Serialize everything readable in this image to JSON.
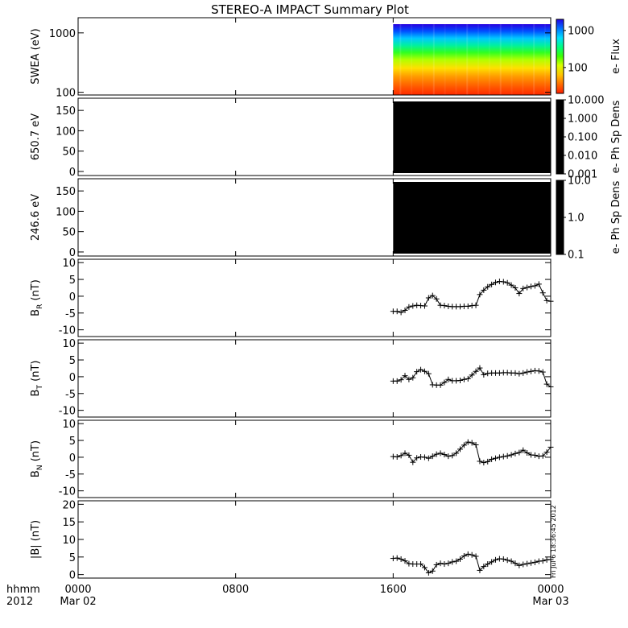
{
  "chart_data": {
    "type": "line",
    "title": "STEREO-A IMPACT Summary Plot",
    "x_axis": {
      "range_hours": [
        0,
        24
      ],
      "ticks": [
        {
          "hour": 0,
          "line1": "0000",
          "line2": "Mar 02"
        },
        {
          "hour": 8,
          "line1": "0800",
          "line2": ""
        },
        {
          "hour": 16,
          "line1": "1600",
          "line2": ""
        },
        {
          "hour": 24,
          "line1": "0000",
          "line2": "Mar 03"
        }
      ],
      "left_label_line1": "hhmm",
      "left_label_line2": "2012"
    },
    "footnote": "Fri Jul  6 18:36:45 2012",
    "panels": [
      {
        "name": "swea",
        "type": "heatmap",
        "ylabel": "SWEA (eV)",
        "yscale": "log",
        "ylim": [
          90,
          1800
        ],
        "yticks": [
          100,
          1000
        ],
        "ytick_labels": [
          "100",
          "1000"
        ],
        "data_start_hour": 16,
        "colorbar": {
          "label": "e- Flux",
          "scale": "log",
          "range": [
            20,
            2000
          ],
          "ticks": [
            100,
            1000
          ],
          "tick_labels": [
            "100",
            "1000"
          ]
        }
      },
      {
        "name": "pad_650",
        "type": "heatmap",
        "ylabel": "650.7 eV",
        "ylim": [
          -10,
          180
        ],
        "yticks": [
          0,
          50,
          100,
          150
        ],
        "ytick_labels": [
          "0",
          "50",
          "100",
          "150"
        ],
        "data_start_hour": 16,
        "fill": "#000000",
        "colorbar": {
          "label": "e- Ph Sp Dens",
          "scale": "log",
          "range": [
            0.001,
            10
          ],
          "ticks": [
            0.001,
            0.01,
            0.1,
            1,
            10
          ],
          "tick_labels": [
            "0.001",
            "0.010",
            "0.100",
            "1.000",
            "10.000"
          ]
        }
      },
      {
        "name": "pad_246",
        "type": "heatmap",
        "ylabel": "246.6 eV",
        "ylim": [
          -10,
          180
        ],
        "yticks": [
          0,
          50,
          100,
          150
        ],
        "ytick_labels": [
          "0",
          "50",
          "100",
          "150"
        ],
        "data_start_hour": 16,
        "fill": "#000000",
        "colorbar": {
          "label": "e- Ph Sp Dens",
          "scale": "log",
          "range": [
            0.1,
            10
          ],
          "ticks": [
            0.1,
            1,
            10
          ],
          "tick_labels": [
            "0.1",
            "1.0",
            "10.0"
          ]
        }
      },
      {
        "name": "br",
        "type": "line",
        "ylabel": "B",
        "ylabel_sub": "R",
        "ylabel_tail": " (nT)",
        "ylim": [
          -12,
          11
        ],
        "yticks": [
          -10,
          -5,
          0,
          5,
          10
        ],
        "ytick_labels": [
          "-10",
          "-5",
          "0",
          "5",
          "10"
        ],
        "x": [
          16.0,
          16.2,
          16.4,
          16.6,
          16.8,
          17.0,
          17.2,
          17.4,
          17.6,
          17.8,
          18.0,
          18.2,
          18.4,
          18.6,
          18.8,
          19.0,
          19.2,
          19.4,
          19.6,
          19.8,
          20.0,
          20.2,
          20.4,
          20.6,
          20.8,
          21.0,
          21.2,
          21.4,
          21.6,
          21.8,
          22.0,
          22.2,
          22.4,
          22.6,
          22.8,
          23.0,
          23.2,
          23.4,
          23.6,
          23.8,
          24.0
        ],
        "y": [
          -4.5,
          -4.5,
          -4.8,
          -4.2,
          -3.2,
          -2.9,
          -2.7,
          -2.8,
          -2.9,
          -0.5,
          0.2,
          -0.8,
          -2.7,
          -2.8,
          -3.0,
          -3.1,
          -3.1,
          -3.1,
          -3.0,
          -3.0,
          -2.8,
          -2.7,
          0.5,
          1.8,
          2.8,
          3.5,
          4.1,
          4.4,
          4.3,
          4.0,
          3.3,
          2.5,
          0.8,
          2.3,
          2.6,
          2.9,
          3.1,
          3.6,
          1.0,
          -1.3,
          -1.5
        ]
      },
      {
        "name": "bt",
        "type": "line",
        "ylabel": "B",
        "ylabel_sub": "T",
        "ylabel_tail": " (nT)",
        "ylim": [
          -12,
          11
        ],
        "yticks": [
          -10,
          -5,
          0,
          5,
          10
        ],
        "ytick_labels": [
          "-10",
          "-5",
          "0",
          "5",
          "10"
        ],
        "x": [
          16.0,
          16.2,
          16.4,
          16.6,
          16.8,
          17.0,
          17.2,
          17.4,
          17.6,
          17.8,
          18.0,
          18.2,
          18.4,
          18.6,
          18.8,
          19.0,
          19.2,
          19.4,
          19.6,
          19.8,
          20.0,
          20.2,
          20.4,
          20.6,
          20.8,
          21.0,
          21.2,
          21.4,
          21.6,
          21.8,
          22.0,
          22.2,
          22.4,
          22.6,
          22.8,
          23.0,
          23.2,
          23.4,
          23.6,
          23.8,
          24.0
        ],
        "y": [
          -1.3,
          -1.3,
          -0.9,
          0.3,
          -0.8,
          -0.3,
          1.5,
          2.1,
          1.6,
          0.9,
          -2.4,
          -2.5,
          -2.5,
          -1.7,
          -0.8,
          -1.2,
          -1.2,
          -1.1,
          -0.8,
          -0.6,
          0.5,
          1.6,
          2.6,
          0.6,
          1.0,
          1.1,
          1.1,
          1.1,
          1.2,
          1.2,
          1.1,
          1.1,
          0.9,
          1.1,
          1.4,
          1.6,
          1.8,
          1.7,
          1.4,
          -2.2,
          -3.0
        ]
      },
      {
        "name": "bn",
        "type": "line",
        "ylabel": "B",
        "ylabel_sub": "N",
        "ylabel_tail": " (nT)",
        "ylim": [
          -12,
          11
        ],
        "yticks": [
          -10,
          -5,
          0,
          5,
          10
        ],
        "ytick_labels": [
          "-10",
          "-5",
          "0",
          "5",
          "10"
        ],
        "x": [
          16.0,
          16.2,
          16.4,
          16.6,
          16.8,
          17.0,
          17.2,
          17.4,
          17.6,
          17.8,
          18.0,
          18.2,
          18.4,
          18.6,
          18.8,
          19.0,
          19.2,
          19.4,
          19.6,
          19.8,
          20.0,
          20.2,
          20.4,
          20.6,
          20.8,
          21.0,
          21.2,
          21.4,
          21.6,
          21.8,
          22.0,
          22.2,
          22.4,
          22.6,
          22.8,
          23.0,
          23.2,
          23.4,
          23.6,
          23.8,
          24.0
        ],
        "y": [
          0.2,
          0.1,
          0.5,
          1.2,
          0.6,
          -1.5,
          -0.2,
          0.1,
          0.0,
          -0.3,
          0.3,
          0.9,
          1.2,
          0.8,
          0.3,
          0.5,
          1.2,
          2.4,
          3.6,
          4.5,
          4.3,
          3.7,
          -1.2,
          -1.6,
          -1.3,
          -0.6,
          -0.3,
          0.0,
          0.2,
          0.4,
          0.7,
          1.1,
          1.4,
          2.1,
          1.3,
          0.7,
          0.6,
          0.3,
          0.4,
          1.5,
          3.0
        ]
      },
      {
        "name": "bmag",
        "type": "line",
        "ylabel": "|B| (nT)",
        "ylim": [
          -1,
          21
        ],
        "yticks": [
          0,
          5,
          10,
          15,
          20
        ],
        "ytick_labels": [
          "0",
          "5",
          "10",
          "15",
          "20"
        ],
        "x": [
          16.0,
          16.2,
          16.4,
          16.6,
          16.8,
          17.0,
          17.2,
          17.4,
          17.6,
          17.8,
          18.0,
          18.2,
          18.4,
          18.6,
          18.8,
          19.0,
          19.2,
          19.4,
          19.6,
          19.8,
          20.0,
          20.2,
          20.4,
          20.6,
          20.8,
          21.0,
          21.2,
          21.4,
          21.6,
          21.8,
          22.0,
          22.2,
          22.4,
          22.6,
          22.8,
          23.0,
          23.2,
          23.4,
          23.6,
          23.8,
          24.0
        ],
        "y": [
          4.6,
          4.7,
          4.4,
          3.9,
          3.1,
          3.0,
          3.0,
          3.0,
          2.0,
          0.5,
          1.0,
          2.8,
          3.2,
          3.0,
          3.2,
          3.6,
          3.8,
          4.4,
          5.3,
          5.8,
          5.6,
          5.2,
          1.2,
          2.3,
          3.0,
          3.6,
          4.2,
          4.5,
          4.4,
          4.1,
          3.8,
          3.2,
          2.6,
          2.9,
          3.1,
          3.3,
          3.5,
          3.8,
          3.9,
          4.2,
          4.3
        ]
      }
    ]
  },
  "colors": {
    "frame": "#000000",
    "trace": "#000000",
    "background": "#ffffff"
  }
}
